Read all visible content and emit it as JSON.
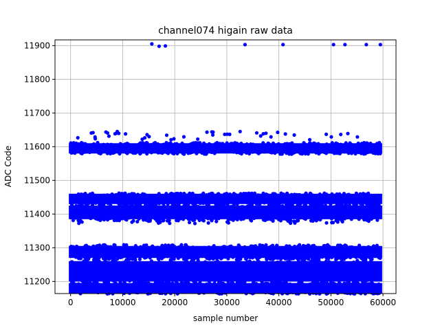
{
  "chart_data": {
    "type": "scatter",
    "title": "channel074 higain raw data",
    "xlabel": "sample number",
    "ylabel": "ADC Code",
    "xlim": [
      -3000,
      62500
    ],
    "ylim": [
      11164,
      11917
    ],
    "xticks": [
      0,
      10000,
      20000,
      30000,
      40000,
      50000,
      60000
    ],
    "xtick_labels": [
      "0",
      "10000",
      "20000",
      "30000",
      "40000",
      "50000",
      "60000"
    ],
    "yticks": [
      11200,
      11300,
      11400,
      11500,
      11600,
      11700,
      11800,
      11900
    ],
    "ytick_labels": [
      "11200",
      "11300",
      "11400",
      "11500",
      "11600",
      "11700",
      "11800",
      "11900"
    ],
    "grid": true,
    "marker_color": "#0000ff",
    "series": [
      {
        "values_description": "dense band",
        "x_range": [
          0,
          59500
        ],
        "y_range": [
          11170,
          11190
        ]
      },
      {
        "x_range": [
          0,
          59500
        ],
        "y_range": [
          11205,
          11255
        ]
      },
      {
        "x_range": [
          0,
          59500
        ],
        "y_range": [
          11275,
          11300
        ]
      },
      {
        "x_range": [
          0,
          59500
        ],
        "y_range": [
          11390,
          11420
        ]
      },
      {
        "x_range": [
          0,
          59500
        ],
        "y_range": [
          11435,
          11455
        ]
      },
      {
        "x_range": [
          0,
          59500
        ],
        "y_range": [
          11585,
          11605
        ]
      }
    ],
    "outliers": [
      {
        "x": 15600,
        "y": 11905
      },
      {
        "x": 17000,
        "y": 11898
      },
      {
        "x": 18200,
        "y": 11899
      },
      {
        "x": 33500,
        "y": 11903
      },
      {
        "x": 40800,
        "y": 11903
      },
      {
        "x": 50500,
        "y": 11903
      },
      {
        "x": 52700,
        "y": 11903
      },
      {
        "x": 56800,
        "y": 11903
      },
      {
        "x": 59500,
        "y": 11903
      }
    ]
  }
}
